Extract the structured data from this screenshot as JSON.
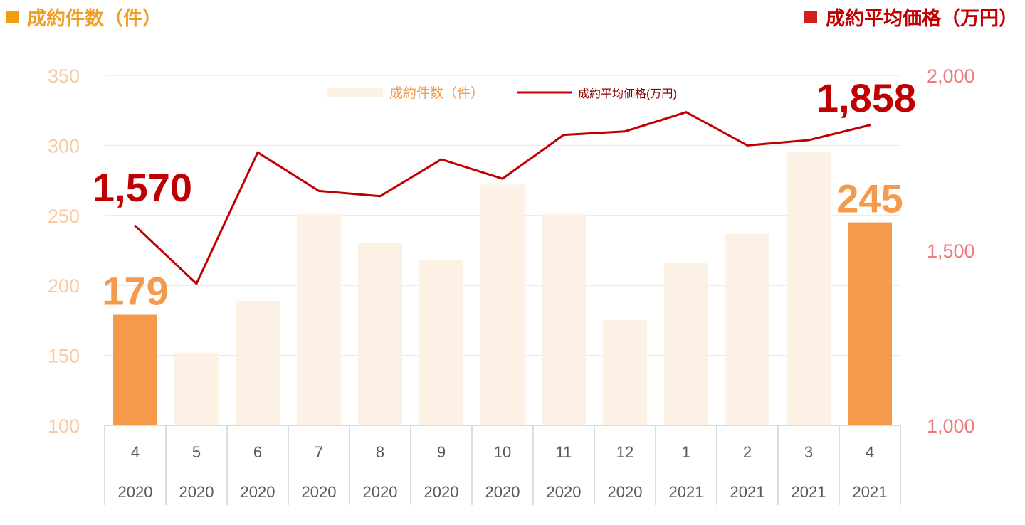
{
  "headers": {
    "left": "成約件数（件）",
    "right": "成約平均価格（万円）",
    "left_color": "#f39c12",
    "right_color": "#d41f1f"
  },
  "chart_data": {
    "type": "bar+line",
    "categories": [
      {
        "month": "4",
        "year": "2020"
      },
      {
        "month": "5",
        "year": "2020"
      },
      {
        "month": "6",
        "year": "2020"
      },
      {
        "month": "7",
        "year": "2020"
      },
      {
        "month": "8",
        "year": "2020"
      },
      {
        "month": "9",
        "year": "2020"
      },
      {
        "month": "10",
        "year": "2020"
      },
      {
        "month": "11",
        "year": "2020"
      },
      {
        "month": "12",
        "year": "2020"
      },
      {
        "month": "1",
        "year": "2021"
      },
      {
        "month": "2",
        "year": "2021"
      },
      {
        "month": "3",
        "year": "2021"
      },
      {
        "month": "4",
        "year": "2021"
      }
    ],
    "series": [
      {
        "name": "成約件数（件）",
        "type": "bar",
        "axis": "left",
        "values": [
          179,
          152,
          189,
          251,
          230,
          218,
          272,
          251,
          175,
          216,
          237,
          295,
          245
        ],
        "highlight_indices": [
          0,
          12
        ],
        "color": "#fdf1e6",
        "highlight_color": "#f5994a"
      },
      {
        "name": "成約平均価格(万円)",
        "type": "line",
        "axis": "right",
        "values": [
          1570,
          1405,
          1780,
          1670,
          1655,
          1760,
          1705,
          1830,
          1840,
          1895,
          1800,
          1815,
          1858
        ],
        "color": "#c00000"
      }
    ],
    "y_left": {
      "min": 100,
      "max": 350,
      "ticks": [
        100,
        150,
        200,
        250,
        300,
        350
      ],
      "color": "#f9c9a0"
    },
    "y_right": {
      "min": 1000,
      "max": 2000,
      "ticks": [
        "1,000",
        "1,500",
        "2,000"
      ],
      "tick_values": [
        1000,
        1500,
        2000
      ],
      "color": "#f07a7a"
    },
    "annotations": [
      {
        "series": 0,
        "index": 0,
        "text": "179",
        "color": "#f5994a"
      },
      {
        "series": 0,
        "index": 12,
        "text": "245",
        "color": "#f5994a"
      },
      {
        "series": 1,
        "index": 0,
        "text": "1,570",
        "color": "#c00000"
      },
      {
        "series": 1,
        "index": 12,
        "text": "1,858",
        "color": "#c00000"
      }
    ],
    "legend_position": "top-center",
    "grid": true
  }
}
